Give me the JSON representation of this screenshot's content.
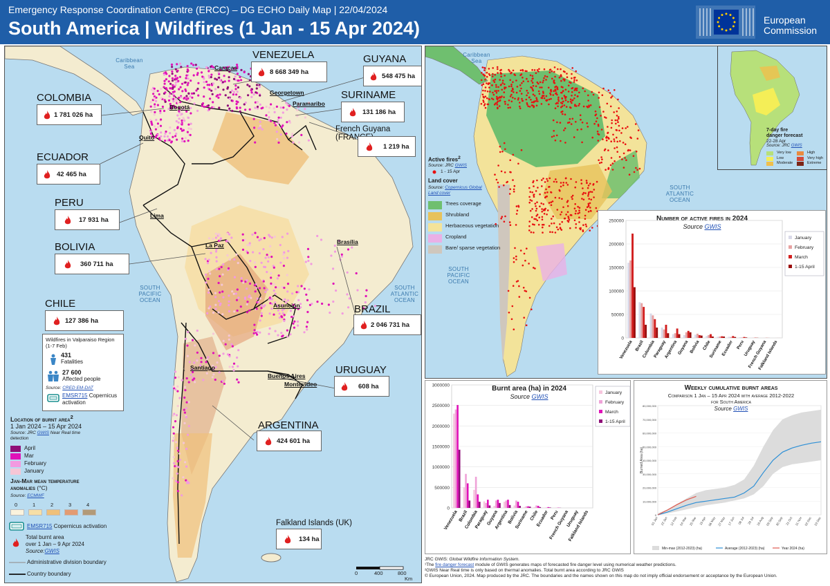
{
  "header": {
    "subtitle": "Emergency Response Coordination Centre (ERCC) – DG ECHO Daily Map | 22/04/2024",
    "title": "South America | Wildfires (1 Jan - 15 Apr 2024)",
    "logo_text_1": "European",
    "logo_text_2": "Commission"
  },
  "seas": {
    "caribbean": "Caribbean Sea",
    "south_pacific": "SOUTH PACIFIC OCEAN",
    "south_atlantic": "SOUTH ATLANTIC OCEAN",
    "right_caribbean": "Caribbean Sea",
    "right_pacific": "SOUTH PACIFIC OCEAN",
    "right_atlantic": "SOUTH ATLANTIC OCEAN"
  },
  "countries": [
    {
      "name": "VENEZUELA",
      "ha": "8 668 349 ha"
    },
    {
      "name": "GUYANA",
      "ha": "548 475 ha"
    },
    {
      "name": "COLOMBIA",
      "ha": "1 781 026 ha"
    },
    {
      "name": "SURINAME",
      "ha": "131 186 ha"
    },
    {
      "name": "French Guyana (FRANCE)",
      "ha": "1 219 ha"
    },
    {
      "name": "ECUADOR",
      "ha": "42 465 ha"
    },
    {
      "name": "PERU",
      "ha": "17 931 ha"
    },
    {
      "name": "BOLIVIA",
      "ha": "360 711 ha"
    },
    {
      "name": "CHILE",
      "ha": "127 386 ha"
    },
    {
      "name": "BRAZIL",
      "ha": "2 046 731 ha"
    },
    {
      "name": "URUGUAY",
      "ha": "608 ha"
    },
    {
      "name": "ARGENTINA",
      "ha": "424 601 ha"
    },
    {
      "name": "Falkland Islands (UK)",
      "ha": "134 ha"
    }
  ],
  "cities": [
    "Caracas",
    "Georgetown",
    "Paramaribo",
    "Bogotá",
    "Quito",
    "Lima",
    "La Paz",
    "Brasília",
    "Asunción",
    "Santiago",
    "Buenos Aires",
    "Montevideo"
  ],
  "chile_valparaiso": {
    "title": "Wildfires in Valparaiso Region (1-7 Feb)",
    "fatalities_num": "431",
    "fatalities_label": "Fatalities",
    "affected_num": "27 600",
    "affected_label": "Affected people",
    "source_label": "Source:",
    "source_link": "CRED EM-DAT",
    "emsr": "EMSR715",
    "emsr_suffix": " Copernicus",
    "activation": "activation"
  },
  "left_legend": {
    "location_title": "Location of burnt area",
    "location_sup": "2",
    "period": "1 Jan 2024 – 15 Apr 2024",
    "source_prefix": "Source: JRC ",
    "source_link": "GWIS",
    "source_suffix": " Near Real time",
    "detection": "detection",
    "months": [
      {
        "label": "April",
        "color": "#8f0f78"
      },
      {
        "label": "Mar",
        "color": "#e012b8"
      },
      {
        "label": "February",
        "color": "#f29ae0"
      },
      {
        "label": "January",
        "color": "#f6c6d6"
      }
    ],
    "temp_title_1": "Jan-Mar mean temperature",
    "temp_title_2": "anomalies",
    "temp_unit": " (°C)",
    "temp_source_prefix": "Source: ",
    "temp_source_link": "ECMWF",
    "temp_classes": [
      {
        "label": "0",
        "color": "#fbf3dd"
      },
      {
        "label": "1",
        "color": "#f6dfa6"
      },
      {
        "label": "2",
        "color": "#efc07a"
      },
      {
        "label": "3",
        "color": "#e39b72"
      },
      {
        "label": "4",
        "color": "#b29a78"
      }
    ],
    "emsr": "EMSR715",
    "emsr_suffix": " Copernicus activation",
    "total_1": "Total burnt area",
    "total_2": "over 1 Jan – 9 Apr 2024",
    "total_source_prefix": "Source:",
    "total_source_link": "GWIS",
    "admin": "Administrative division boundary",
    "country": "Country boundary",
    "scale_0": "0",
    "scale_400": "400",
    "scale_800": "800",
    "scale_unit": "Km"
  },
  "right_legend": {
    "active_fires": "Active fires",
    "active_sup": "2",
    "af_source_prefix": "Source: JRC ",
    "af_source_link": "GWIS",
    "af_period": "1 - 15 Apr",
    "land_cover": "Land cover",
    "lc_source_prefix": "Source: ",
    "lc_source_link_1": "Copernicus Global",
    "lc_source_link_2": "Land cover",
    "classes": [
      {
        "label": "Trees coverage",
        "color": "#6fbf6f"
      },
      {
        "label": "Shrubland",
        "color": "#e7c25b"
      },
      {
        "label": "Herbaceous vegetation",
        "color": "#f3e39a"
      },
      {
        "label": "Cropland",
        "color": "#eab0e6"
      },
      {
        "label": "Bare/ sparse vegetation",
        "color": "#cfc7bd"
      }
    ]
  },
  "inset": {
    "title_1": "7-day fire",
    "title_2": "danger forecast",
    "period": "22-28 Apr",
    "source_prefix": "Source: JRC ",
    "source_link": "GWIS",
    "classes": [
      {
        "label": "Very low",
        "color": "#b7e07a"
      },
      {
        "label": "Low",
        "color": "#f4ee57"
      },
      {
        "label": "Moderate",
        "color": "#f0bf4c"
      },
      {
        "label": "High",
        "color": "#ea8a3f"
      },
      {
        "label": "Very high",
        "color": "#d24a3b"
      },
      {
        "label": "Extreme",
        "color": "#7c2618"
      }
    ]
  },
  "active_fires_chart": {
    "title": "Number of active fires in 2024",
    "source_prefix": "Source ",
    "source_link": "GWIS"
  },
  "burnt_area_chart": {
    "title": "Burnt area (ha) in 2024",
    "source_prefix": "Source ",
    "source_link": "GWIS"
  },
  "weekly_chart": {
    "title": "Weekly cumulative burnt areas",
    "subtitle_1": "Comparison 1 Jan – 15 Apr 2024 with average 2012-2022",
    "subtitle_2": "for South America",
    "source_prefix": "Source ",
    "source_link": "GWIS",
    "ylabel": "Burned Area (ha)",
    "legend_minmax": "Min-max (2012-2023) (ha)",
    "legend_avg": "Average (2012-2023) (ha)",
    "legend_2024": "Year 2024 (ha)"
  },
  "footer": {
    "line1_prefix": "JRC GWIS: ",
    "line1_italic": "Global Wildfire Information System.",
    "line2_prefix": "¹The ",
    "line2_link": "fire danger forecast",
    "line2_suffix": " module of GWIS generates maps of forecasted fire danger level using numerical weather predictions.",
    "line3": "²GWIS Near Real time is only based on thermal anomalies. Total burnt area according to JRC GWIS",
    "line4": "© European Union, 2024. Map produced by the JRC. The boundaries and the names shown on this map do not imply official endorsement or acceptance by the European Union."
  },
  "chart_data": [
    {
      "type": "bar",
      "title": "Number of active fires in 2024",
      "categories": [
        "Venezuela",
        "Brazil",
        "Colombia",
        "Paraguay",
        "Argentina",
        "Guyana",
        "Bolivia",
        "Chile",
        "Suriname",
        "Ecuador",
        "Peru",
        "Uruguay",
        "French Guyana",
        "Falkland Islands"
      ],
      "series": [
        {
          "name": "January",
          "values": [
            160000,
            76000,
            52000,
            22000,
            8000,
            6000,
            7000,
            4000,
            2500,
            2500,
            1500,
            300,
            100,
            50
          ],
          "color": "#d9d9e8"
        },
        {
          "name": "February",
          "values": [
            165000,
            74000,
            48000,
            18000,
            10000,
            12000,
            9000,
            6000,
            3000,
            2000,
            1000,
            300,
            100,
            50
          ],
          "color": "#e7a2a2"
        },
        {
          "name": "March",
          "values": [
            222000,
            66000,
            40000,
            28000,
            20000,
            15000,
            6000,
            8000,
            3500,
            4000,
            2000,
            500,
            200,
            50
          ],
          "color": "#d21f1f"
        },
        {
          "name": "1-15 April",
          "values": [
            108000,
            28000,
            22000,
            10000,
            8000,
            12000,
            5000,
            3000,
            3000,
            2000,
            1000,
            300,
            100,
            50
          ],
          "color": "#9a0d0d"
        }
      ],
      "ylim": [
        0,
        250000
      ],
      "yticks": [
        "0",
        "50000",
        "100000",
        "150000",
        "200000",
        "250000"
      ],
      "legend": "right"
    },
    {
      "type": "bar",
      "title": "Burnt area (ha) in 2024",
      "categories": [
        "Venezuela",
        "Brazil",
        "Colombia",
        "Paraguay",
        "Guyana",
        "Argentina",
        "Bolivia",
        "Suriname",
        "Chile",
        "Ecuador",
        "Peru",
        "French Guyana",
        "Uruguay",
        "Falkland Islands"
      ],
      "series": [
        {
          "name": "January",
          "values": [
            2300000,
            500000,
            440000,
            160000,
            50000,
            150000,
            60000,
            20000,
            20000,
            5000,
            3000,
            200,
            100,
            30
          ],
          "color": "#f7c6de"
        },
        {
          "name": "February",
          "values": [
            2400000,
            830000,
            760000,
            120000,
            180000,
            180000,
            180000,
            40000,
            60000,
            10000,
            5000,
            400,
            200,
            30
          ],
          "color": "#efa3d8"
        },
        {
          "name": "March",
          "values": [
            2510000,
            600000,
            330000,
            200000,
            200000,
            200000,
            150000,
            40000,
            50000,
            20000,
            6000,
            400,
            200,
            50
          ],
          "color": "#e012b8"
        },
        {
          "name": "1-15 April",
          "values": [
            1420000,
            180000,
            150000,
            60000,
            120000,
            70000,
            50000,
            30000,
            20000,
            10000,
            3000,
            200,
            100,
            20
          ],
          "color": "#8f0f78"
        }
      ],
      "ylim": [
        0,
        3000000
      ],
      "yticks": [
        "0",
        "500000",
        "1000000",
        "1500000",
        "2000000",
        "2500000",
        "3000000"
      ],
      "legend": "right"
    },
    {
      "type": "area",
      "title": "Weekly cumulative burnt areas",
      "ylabel": "Burned Area (ha)",
      "ylim": [
        0,
        80000000
      ],
      "yticks": [
        "0",
        "10,000,000",
        "20,000,000",
        "30,000,000",
        "40,000,000",
        "50,000,000",
        "60,000,000",
        "70,000,000",
        "80,000,000"
      ],
      "x": [
        "01 Jan",
        "22 Jan",
        "12 Feb",
        "04 Mar",
        "25 Mar",
        "15 Apr",
        "06 May",
        "27 May",
        "17 Jun",
        "08 Jul",
        "29 Jul",
        "19 Aug",
        "09 Sep",
        "30 Sep",
        "21 Oct",
        "11 Nov",
        "02 Dec",
        "23 Dec"
      ],
      "series": [
        {
          "name": "Min-max (2012-2023) (ha)",
          "lower": [
            0,
            1000000,
            2500000,
            4000000,
            5500000,
            7000000,
            8000000,
            9000000,
            10500000,
            12000000,
            15000000,
            21000000,
            30000000,
            35000000,
            37000000,
            38000000,
            39000000,
            40000000
          ],
          "upper": [
            1000000,
            4000000,
            8000000,
            12000000,
            16000000,
            18000000,
            19000000,
            20000000,
            22000000,
            26000000,
            36000000,
            50000000,
            62000000,
            70000000,
            73000000,
            75000000,
            76000000,
            77000000
          ],
          "color": "#dcdcdc"
        },
        {
          "name": "Average (2012-2023) (ha)",
          "values": [
            0,
            2000000,
            4500000,
            7000000,
            9000000,
            10000000,
            11000000,
            12000000,
            13000000,
            16000000,
            21000000,
            31000000,
            40000000,
            46000000,
            49000000,
            51000000,
            52500000,
            53500000
          ],
          "color": "#2c8fd6"
        },
        {
          "name": "Year 2024 (ha)",
          "values": [
            0,
            3500000,
            7500000,
            11000000,
            13500000,
            null,
            null,
            null,
            null,
            null,
            null,
            null,
            null,
            null,
            null,
            null,
            null,
            null
          ],
          "color": "#e05a4f"
        }
      ],
      "legend": "bottom"
    }
  ]
}
